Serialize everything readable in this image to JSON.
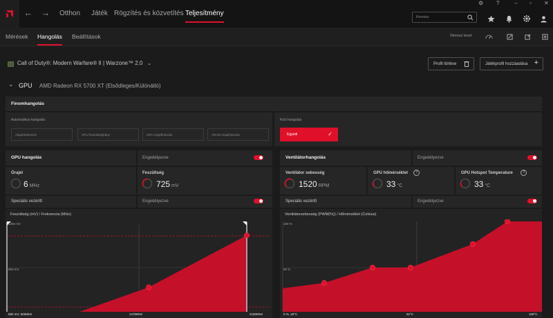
{
  "nav": {
    "tabs": [
      "Otthon",
      "Játék",
      "Rögzítés és közvetítés",
      "Teljesítmény"
    ],
    "search_placeholder": "Keresés"
  },
  "subnav": {
    "tabs": [
      "Mérések",
      "Hangolás",
      "Beállítások"
    ],
    "stress_test": "Stressz teszt"
  },
  "game": {
    "title": "Call of Duty®: Modern Warfare® II | Warzone™ 2.0",
    "delete_profile": "Profil törlése",
    "add_profile": "Játékprofil hozzáadása"
  },
  "gpu": {
    "label": "GPU",
    "name": "AMD Radeon RX 5700 XT (Elsődleges/Különálló)"
  },
  "fine_tuning": {
    "title": "Finomhangolás",
    "auto_label": "Automatikus hangolás",
    "auto_options": [
      "Alapértelmezés",
      "GPU feszültséghány",
      "GPU órajelfokozás",
      "VRAM órajelfokozás"
    ],
    "manual_label": "Kézi hangolás",
    "manual_value": "Egyedi"
  },
  "gpu_tuning": {
    "title": "GPU hangolás",
    "enable": "Engedélyezve",
    "clock_label": "Órajel",
    "clock_value": "6",
    "clock_unit": "MHz",
    "voltage_label": "Feszültség",
    "voltage_value": "725",
    "voltage_unit": "mV",
    "special_label": "Speciális vezérlő",
    "special_enable": "Engedélyezve",
    "chart_title": "Feszültség (mV) / Frekvencia (MHz)"
  },
  "fan_tuning": {
    "title": "Ventilátorhangolás",
    "enable": "Engedélyezve",
    "fan_speed_label": "Ventilátor sebesség",
    "fan_speed_value": "1520",
    "fan_speed_unit": "RPM",
    "gpu_temp_label": "GPU hőmérséklet",
    "gpu_temp_value": "33",
    "gpu_temp_unit": "°C",
    "hotspot_label": "GPU Hotspot Temperature",
    "hotspot_value": "33",
    "hotspot_unit": "°C",
    "special_label": "Speciális vezérlő",
    "special_enable": "Engedélyezve",
    "chart_title": "Ventilátorsebesség (PWM(%)) / Hőmérséklet (Celsius)"
  },
  "chart_data": [
    {
      "type": "area",
      "title": "Feszültség (mV) / Frekvencia (MHz)",
      "x_min_label": "592 mV, 500MHz",
      "x_mid_label": "1475MHz",
      "x_max_label": "2150MHz",
      "y_top_label": "1294 mV",
      "y_mid_label": "993 mV",
      "x": [
        500,
        1000,
        1475,
        2150
      ],
      "y": [
        592,
        592,
        790,
        1210
      ],
      "marker_indices": [
        2,
        3
      ],
      "xlim": [
        500,
        2150
      ],
      "ylim": [
        592,
        1294
      ],
      "color": "#c5102a"
    },
    {
      "type": "area",
      "title": "Ventilátorsebesség (PWM(%)) / Hőmérséklet (Celsius)",
      "x_min_label": "0 %, 25°C",
      "x_mid_label": "62°C",
      "x_max_label": "100°C",
      "y_top_label": "100 %",
      "y_mid_label": "50 %",
      "x": [
        25,
        37,
        51,
        62,
        80,
        90,
        100
      ],
      "y": [
        26,
        32,
        49,
        49,
        75,
        100,
        100
      ],
      "marker_indices": [
        1,
        2,
        3,
        4,
        5
      ],
      "xlim": [
        25,
        100
      ],
      "ylim": [
        0,
        100
      ],
      "color": "#c5102a"
    }
  ]
}
